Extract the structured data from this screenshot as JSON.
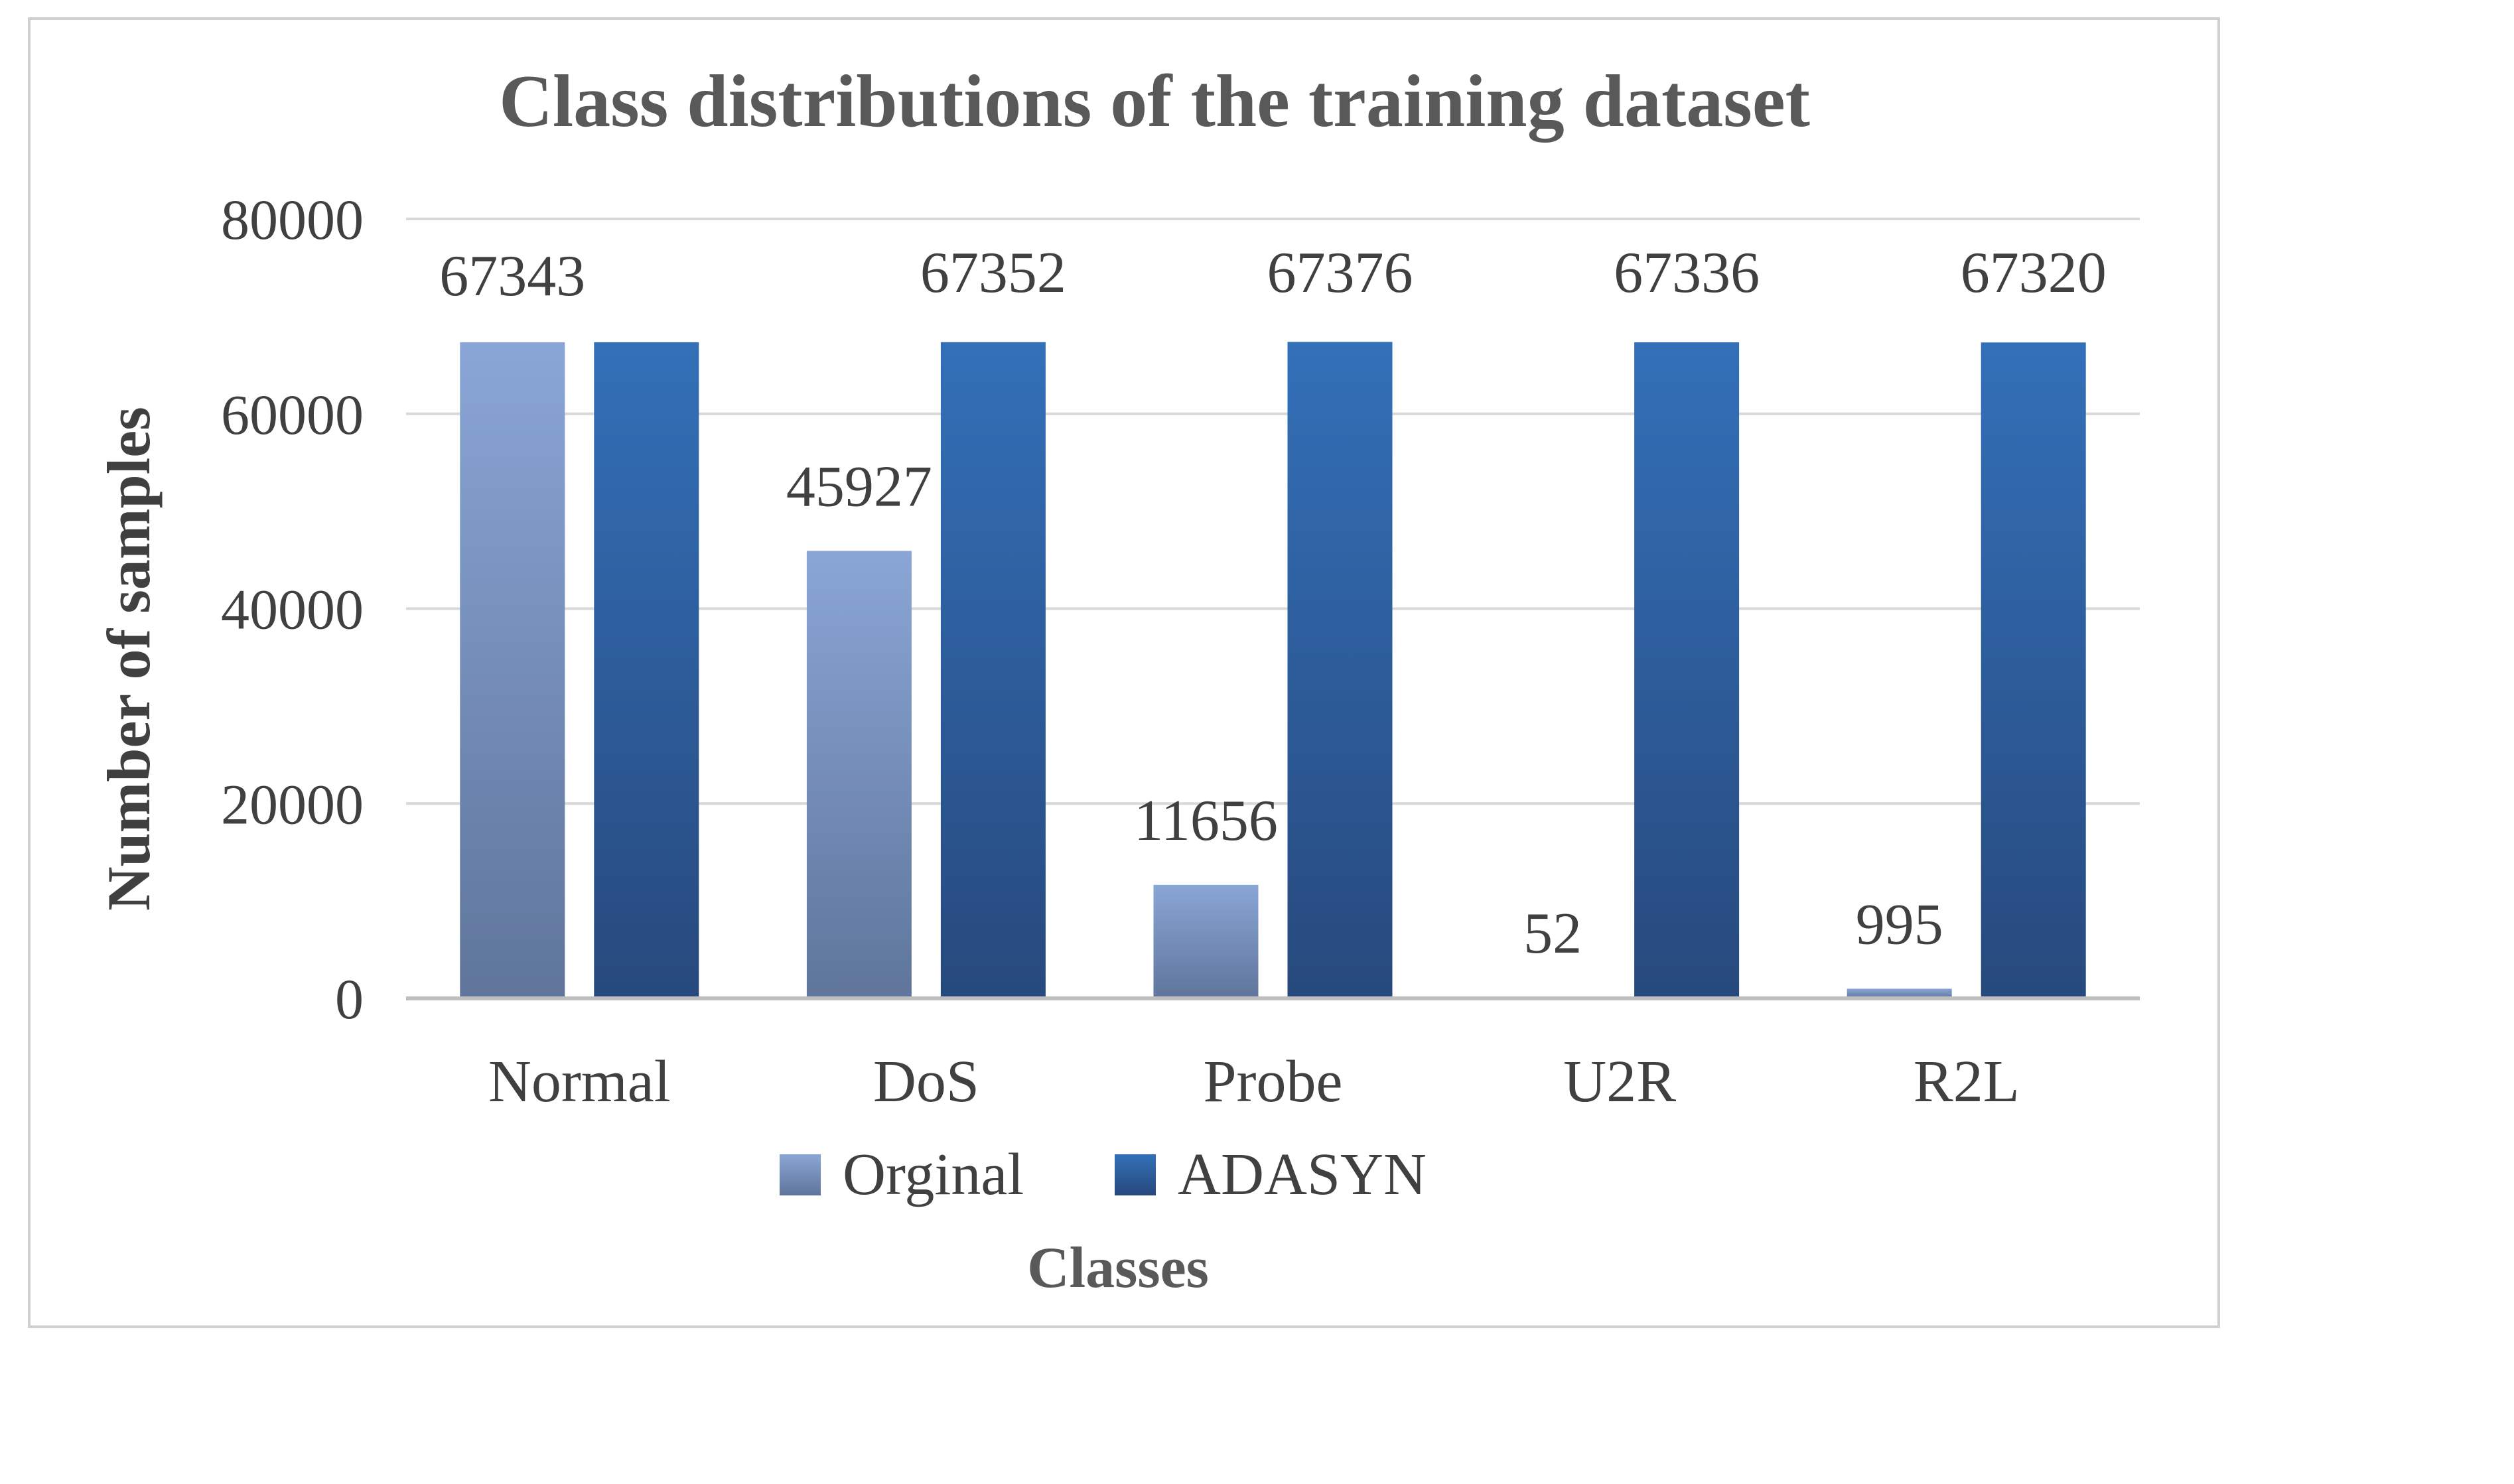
{
  "chart_data": {
    "type": "bar",
    "title": "Class distributions of the training dataset",
    "xlabel": "Classes",
    "ylabel": "Number of samples",
    "categories": [
      "Normal",
      "DoS",
      "Probe",
      "U2R",
      "R2L"
    ],
    "series": [
      {
        "name": "Orginal",
        "values": [
          67343,
          45927,
          11656,
          52,
          995
        ]
      },
      {
        "name": "ADASYN",
        "values": [
          67343,
          67352,
          67376,
          67336,
          67320
        ]
      }
    ],
    "data_labels": [
      [
        "67343",
        "45927",
        "11656",
        "52",
        "995"
      ],
      [
        "",
        "67352",
        "67376",
        "67336",
        "67320"
      ]
    ],
    "ylim": [
      0,
      80000
    ],
    "yticks": [
      "0",
      "20000",
      "40000",
      "60000",
      "80000"
    ],
    "grid": true,
    "legend_position": "bottom",
    "colors": {
      "original_top": "#8aa6d6",
      "original_bottom": "#5f759b",
      "adasyn_top": "#3370b8",
      "adasyn_bottom": "#27497d",
      "grid": "#d9d9d9",
      "axis": "#bfbfbf",
      "text": "#404040",
      "title": "#595959",
      "frame": "#d0d0d0"
    }
  }
}
